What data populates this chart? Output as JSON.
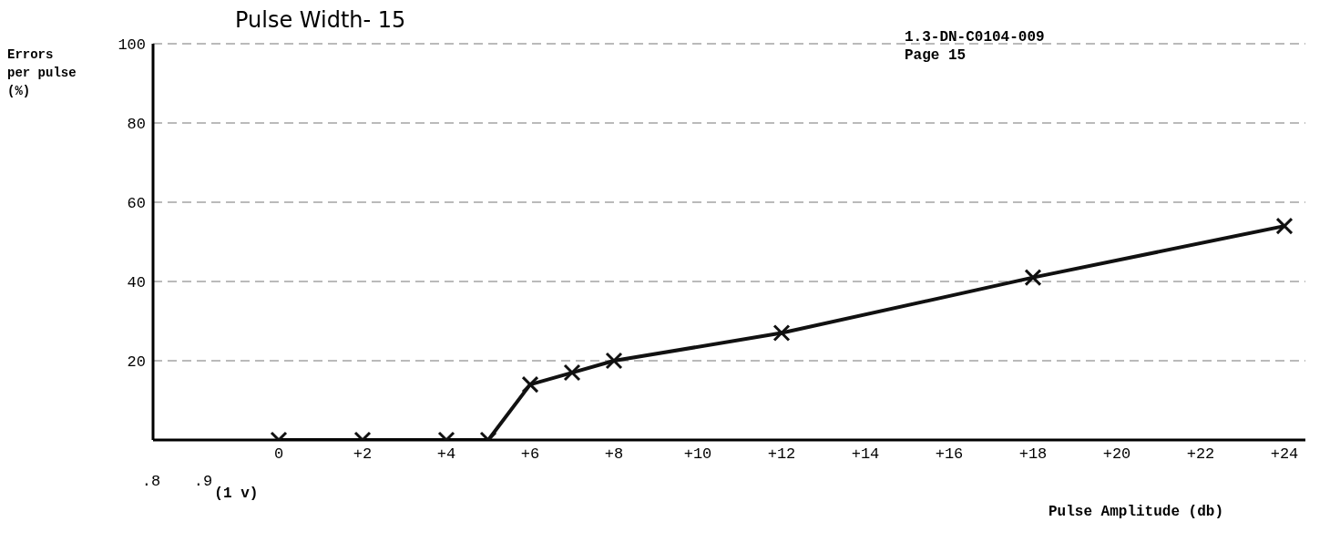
{
  "chart_data": {
    "type": "line",
    "title": "Pulse Width- 15",
    "xlabel": "Pulse Amplitude (db)",
    "ylabel": "Errors per pulse (%)",
    "annotations": [
      "1.3-DN-C0104-009",
      "Page 15",
      "(1 v)",
      ".8",
      ".9"
    ],
    "x": [
      0,
      2,
      4,
      5,
      6,
      7,
      8,
      12,
      18,
      24
    ],
    "series": [
      {
        "color": "#111111",
        "values": [
          0,
          0,
          0,
          0,
          14,
          17,
          20,
          27,
          41,
          54
        ]
      }
    ],
    "xlim": [
      -3,
      24.5
    ],
    "xticks": [
      {
        "value": 0,
        "label": "0"
      },
      {
        "value": 2,
        "label": "+2"
      },
      {
        "value": 4,
        "label": "+4"
      },
      {
        "value": 6,
        "label": "+6"
      },
      {
        "value": 8,
        "label": "+8"
      },
      {
        "value": 10,
        "label": "+10"
      },
      {
        "value": 12,
        "label": "+12"
      },
      {
        "value": 14,
        "label": "+14"
      },
      {
        "value": 16,
        "label": "+16"
      },
      {
        "value": 18,
        "label": "+18"
      },
      {
        "value": 20,
        "label": "+20"
      },
      {
        "value": 22,
        "label": "+22"
      },
      {
        "value": 24,
        "label": "+24"
      }
    ],
    "ylim": [
      0,
      100
    ],
    "yticks": [
      20,
      40,
      60,
      80,
      100
    ],
    "grid": "y",
    "marker": "cross",
    "line_style": "solid"
  }
}
